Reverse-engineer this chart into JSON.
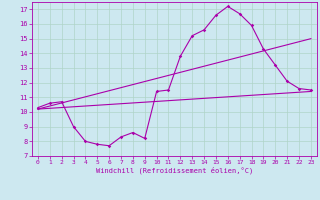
{
  "xlabel": "Windchill (Refroidissement éolien,°C)",
  "bg_color": "#cde8f0",
  "grid_color": "#b0d4c8",
  "line_color": "#aa00aa",
  "xlim": [
    -0.5,
    23.5
  ],
  "ylim": [
    7,
    17.5
  ],
  "xticks": [
    0,
    1,
    2,
    3,
    4,
    5,
    6,
    7,
    8,
    9,
    10,
    11,
    12,
    13,
    14,
    15,
    16,
    17,
    18,
    19,
    20,
    21,
    22,
    23
  ],
  "yticks": [
    7,
    8,
    9,
    10,
    11,
    12,
    13,
    14,
    15,
    16,
    17
  ],
  "series1_x": [
    0,
    1,
    2,
    3,
    4,
    5,
    6,
    7,
    8,
    9,
    10,
    11,
    12,
    13,
    14,
    15,
    16,
    17,
    18,
    19,
    20,
    21,
    22,
    23
  ],
  "series1_y": [
    10.3,
    10.6,
    10.7,
    9.0,
    8.0,
    7.8,
    7.7,
    8.3,
    8.6,
    8.2,
    11.4,
    11.5,
    13.8,
    15.2,
    15.6,
    16.6,
    17.2,
    16.7,
    15.9,
    14.3,
    13.2,
    12.1,
    11.6,
    11.5
  ],
  "series2_x": [
    0,
    23
  ],
  "series2_y": [
    10.2,
    11.4
  ],
  "series3_x": [
    0,
    23
  ],
  "series3_y": [
    10.2,
    15.0
  ]
}
